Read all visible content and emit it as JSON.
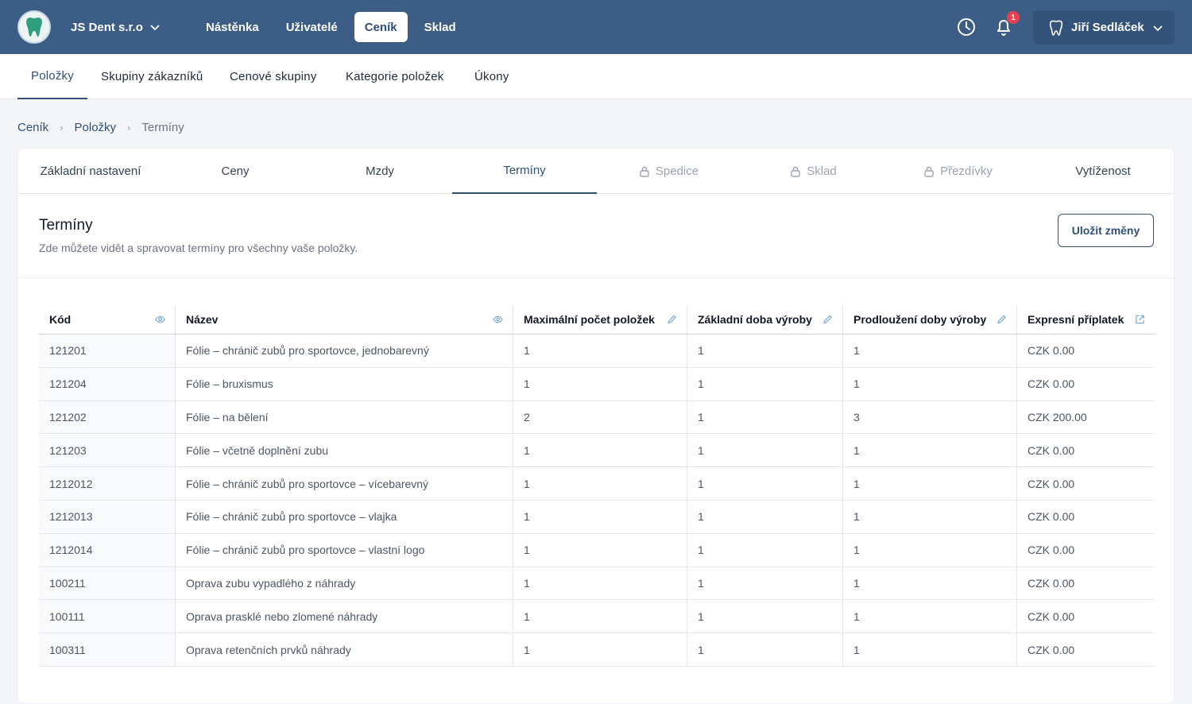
{
  "topbar": {
    "company": "JS Dent s.r.o",
    "nav": [
      "Nástěnka",
      "Uživatelé",
      "Ceník",
      "Sklad"
    ],
    "active_nav": "Ceník",
    "notification_count": "1",
    "user_name": "Jiří Sedláček",
    "colors": {
      "bar": "#3b5d86",
      "badge": "#e8424f",
      "logo_tooth": "#2f9e7e"
    }
  },
  "subnav": {
    "items": [
      "Položky",
      "Skupiny zákazníků",
      "Cenové skupiny",
      "Kategorie položek",
      "Úkony"
    ],
    "active": "Položky"
  },
  "breadcrumb": {
    "items": [
      "Ceník",
      "Položky",
      "Termíny"
    ]
  },
  "tabs": {
    "items": [
      {
        "label": "Základní nastavení",
        "locked": false
      },
      {
        "label": "Ceny",
        "locked": false
      },
      {
        "label": "Mzdy",
        "locked": false
      },
      {
        "label": "Termíny",
        "locked": false,
        "active": true
      },
      {
        "label": "Spedice",
        "locked": true
      },
      {
        "label": "Sklad",
        "locked": true
      },
      {
        "label": "Přezdívky",
        "locked": true
      },
      {
        "label": "Vytíženost",
        "locked": false
      }
    ]
  },
  "section": {
    "title": "Termíny",
    "subtitle": "Zde můžete vidět a spravovat termíny pro všechny vaše položky.",
    "save_label": "Uložit změny"
  },
  "table": {
    "headers": [
      {
        "label": "Kód",
        "icon": "eye-icon"
      },
      {
        "label": "Název",
        "icon": "eye-icon"
      },
      {
        "label": "Maximální počet položek",
        "icon": "pencil-icon"
      },
      {
        "label": "Základní doba výroby",
        "icon": "pencil-icon"
      },
      {
        "label": "Prodloužení doby výroby",
        "icon": "pencil-icon"
      },
      {
        "label": "Expresní příplatek",
        "icon": "external-edit-icon"
      }
    ],
    "rows": [
      [
        "121201",
        "Fólie – chránič zubů pro sportovce, jednobarevný",
        "1",
        "1",
        "1",
        "CZK 0.00"
      ],
      [
        "121204",
        "Fólie – bruxismus",
        "1",
        "1",
        "1",
        "CZK 0.00"
      ],
      [
        "121202",
        "Fólie – na bělení",
        "2",
        "1",
        "3",
        "CZK 200.00"
      ],
      [
        "121203",
        "Fólie – včetně doplnění zubu",
        "1",
        "1",
        "1",
        "CZK 0.00"
      ],
      [
        "1212012",
        "Fólie – chránič zubů pro sportovce – vícebarevný",
        "1",
        "1",
        "1",
        "CZK 0.00"
      ],
      [
        "1212013",
        "Fólie – chránič zubů pro sportovce – vlajka",
        "1",
        "1",
        "1",
        "CZK 0.00"
      ],
      [
        "1212014",
        "Fólie – chránič zubů pro sportovce – vlastní logo",
        "1",
        "1",
        "1",
        "CZK 0.00"
      ],
      [
        "100211",
        "Oprava zubu vypadlého z náhrady",
        "1",
        "1",
        "1",
        "CZK 0.00"
      ],
      [
        "100111",
        "Oprava prasklé nebo zlomené náhrady",
        "1",
        "1",
        "1",
        "CZK 0.00"
      ],
      [
        "100311",
        "Oprava retenčních prvků náhrady",
        "1",
        "1",
        "1",
        "CZK 0.00"
      ]
    ]
  }
}
